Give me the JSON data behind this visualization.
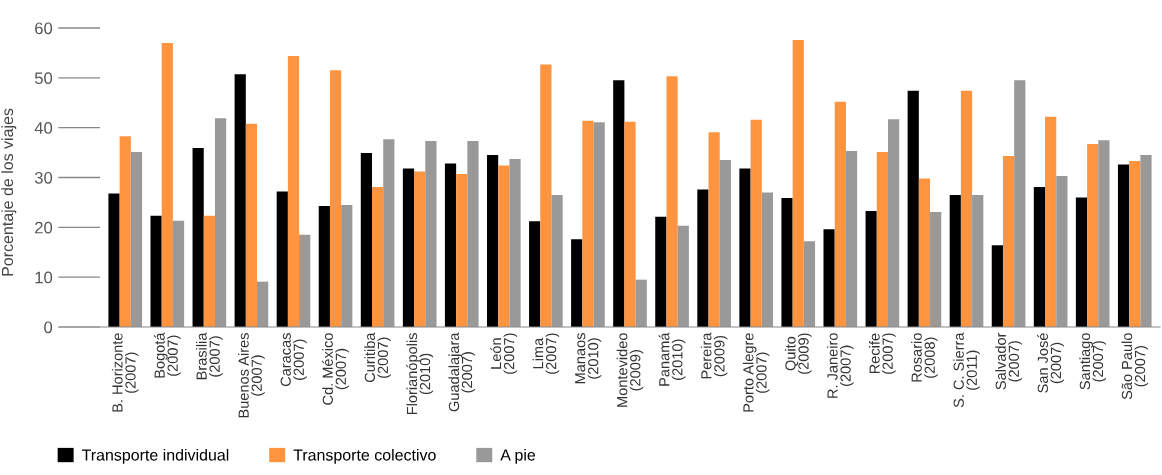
{
  "chart_data": {
    "type": "bar",
    "ylabel": "Porcentaje de los viajes",
    "categories": [
      "B. Horizonte\n(2007)",
      "Bogotá\n(2007)",
      "Brasilia\n(2007)",
      "Buenos Aires\n(2007)",
      "Caracas\n(2007)",
      "Cd. México\n(2007)",
      "Curitiba\n(2007)",
      "Florianópolis\n(2010)",
      "Guadalajara\n(2007)",
      "León\n(2007)",
      "Lima\n(2007)",
      "Manaos\n(2010)",
      "Montevideo\n(2009)",
      "Panamá\n(2010)",
      "Pereira\n(2009)",
      "Porto Alegre\n(2007)",
      "Quito\n(2009)",
      "R. Janeiro\n(2007)",
      "Recife\n(2007)",
      "Rosario\n(2008)",
      "S. C. Sierra\n(2011)",
      "Salvador\n(2007)",
      "San José\n(2007)",
      "Santiago\n(2007)",
      "São Paulo\n(2007)"
    ],
    "series": [
      {
        "name": "Transporte individual",
        "color": "#000000",
        "values": [
          26.8,
          22.3,
          35.9,
          50.7,
          27.2,
          24.3,
          34.9,
          31.8,
          32.8,
          34.5,
          21.2,
          17.6,
          49.5,
          22.1,
          27.6,
          31.8,
          25.9,
          19.6,
          23.3,
          47.4,
          26.5,
          16.4,
          28.1,
          26.0,
          32.6
        ]
      },
      {
        "name": "Transporte colectivo",
        "color": "#ff9440",
        "values": [
          38.3,
          57.0,
          22.3,
          40.8,
          54.4,
          51.5,
          28.1,
          31.2,
          30.7,
          32.4,
          52.7,
          41.4,
          41.2,
          50.3,
          39.1,
          41.6,
          57.6,
          45.2,
          35.1,
          29.8,
          47.4,
          34.3,
          42.2,
          36.7,
          33.3
        ]
      },
      {
        "name": "A pie",
        "color": "#999999",
        "values": [
          35.1,
          21.3,
          41.9,
          9.1,
          18.5,
          24.5,
          37.7,
          37.3,
          37.3,
          33.7,
          26.5,
          41.1,
          9.5,
          20.3,
          33.5,
          27.0,
          17.2,
          35.3,
          41.7,
          23.1,
          26.5,
          49.5,
          30.3,
          37.5,
          34.5
        ]
      }
    ],
    "ylim": [
      0,
      60
    ],
    "yticks": [
      0,
      10,
      20,
      30,
      40,
      50,
      60
    ],
    "grid": false,
    "legend": "bottom left"
  }
}
